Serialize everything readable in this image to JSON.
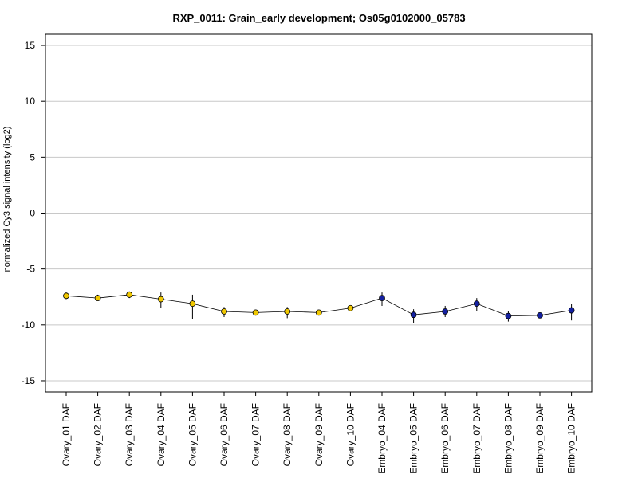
{
  "chart_data": {
    "type": "line",
    "title": "RXP_0011: Grain_early development; Os05g0102000_05783",
    "ylabel": "normalized Cy3 signal intensity (log2)",
    "xlabel": "",
    "ylim": [
      -16,
      16
    ],
    "yticks": [
      15,
      10,
      5,
      0,
      -5,
      -10,
      -15
    ],
    "ytick_labels": [
      "15",
      "10",
      "5",
      "0",
      "-5",
      "-10",
      "-15"
    ],
    "grid": true,
    "categories": [
      "Ovary_01 DAF",
      "Ovary_02 DAF",
      "Ovary_03 DAF",
      "Ovary_04 DAF",
      "Ovary_05 DAF",
      "Ovary_06 DAF",
      "Ovary_07 DAF",
      "Ovary_08 DAF",
      "Ovary_09 DAF",
      "Ovary_10 DAF",
      "Embryo_04 DAF",
      "Embryo_05 DAF",
      "Embryo_06 DAF",
      "Embryo_07 DAF",
      "Embryo_08 DAF",
      "Embryo_09 DAF",
      "Embryo_10 DAF"
    ],
    "series": [
      {
        "values": [
          -7.4,
          -7.6,
          -7.3,
          -7.7,
          -8.1,
          -8.8,
          -8.9,
          -8.8,
          -8.9,
          -8.5,
          -7.6,
          -9.1,
          -8.8,
          -8.1,
          -9.2,
          -9.15,
          -8.7
        ],
        "err_low": [
          -7.7,
          -7.8,
          -7.6,
          -8.5,
          -9.5,
          -9.3,
          -9.1,
          -9.4,
          -9.05,
          -8.7,
          -8.3,
          -9.8,
          -9.3,
          -8.8,
          -9.7,
          -9.3,
          -9.6
        ],
        "err_high": [
          -7.1,
          -7.3,
          -7.0,
          -7.1,
          -7.3,
          -8.4,
          -8.8,
          -8.4,
          -8.8,
          -8.3,
          -7.1,
          -8.6,
          -8.3,
          -7.6,
          -8.8,
          -9.0,
          -8.1
        ],
        "colors": [
          "#f0c800",
          "#f0c800",
          "#f0c800",
          "#f0c800",
          "#f0c800",
          "#f0c800",
          "#f0c800",
          "#f0c800",
          "#f0c800",
          "#f0c800",
          "#1420a0",
          "#1420a0",
          "#1420a0",
          "#1420a0",
          "#1420a0",
          "#1420a0",
          "#1420a0"
        ]
      }
    ],
    "line_color": "#000000",
    "grid_color": "#c8c8c8"
  }
}
